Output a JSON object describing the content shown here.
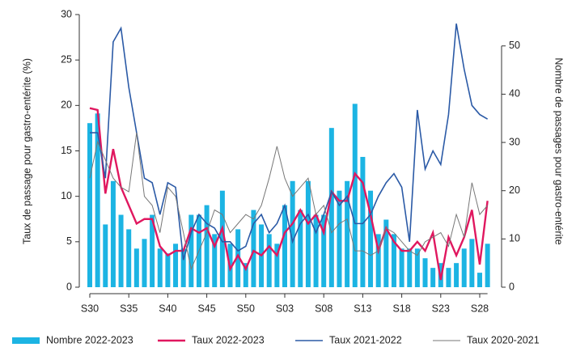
{
  "chart_data": {
    "type": "bar-line",
    "ylabel": "Taux de passage pour gastro-entérite (%)",
    "y2label": "Nombre de passages pour gastro-entérite",
    "categories": [
      "S30",
      null,
      null,
      null,
      null,
      "S35",
      null,
      null,
      null,
      null,
      "S40",
      null,
      null,
      null,
      null,
      "S45",
      null,
      null,
      null,
      null,
      "S50",
      null,
      null,
      null,
      null,
      "S03",
      null,
      null,
      null,
      null,
      "S08",
      null,
      null,
      null,
      null,
      "S13",
      null,
      null,
      null,
      null,
      "S18",
      null,
      null,
      null,
      null,
      "S23",
      null,
      null,
      null,
      null,
      "S28",
      null
    ],
    "ylim": [
      0,
      30
    ],
    "yticks": [
      0,
      5,
      10,
      15,
      20,
      25,
      30
    ],
    "y2lim": [
      0,
      56.5
    ],
    "y2ticks": [
      0,
      10,
      20,
      30,
      40,
      50
    ],
    "series": [
      {
        "name": "Nombre 2022-2023",
        "kind": "bar",
        "axis": "y2",
        "color": "#1cb4e3",
        "values": [
          34,
          36,
          13,
          22,
          15,
          12,
          8,
          10,
          15,
          8,
          7,
          9,
          8,
          15,
          15,
          17,
          11,
          20,
          9,
          12,
          5,
          16,
          13,
          11,
          9,
          17,
          22,
          16,
          22,
          15,
          15,
          33,
          20,
          22,
          38,
          27,
          20,
          11,
          14,
          11,
          8,
          8,
          8,
          6,
          4,
          5,
          4,
          5,
          8,
          10,
          3,
          9
        ]
      },
      {
        "name": "Taux 2022-2023",
        "kind": "line",
        "axis": "y",
        "color": "#e0175f",
        "values": [
          19.7,
          19.5,
          10.3,
          15.2,
          11,
          9,
          7,
          7.5,
          7.5,
          4.5,
          3.5,
          4,
          4,
          6.5,
          6,
          6.5,
          4.5,
          6.5,
          2,
          3.5,
          2,
          4,
          3.5,
          4.5,
          3.5,
          6,
          7,
          8.5,
          7,
          8,
          6,
          10.5,
          9.5,
          9.5,
          12.5,
          11.5,
          8,
          4,
          6.5,
          5,
          4,
          4,
          5,
          4,
          6,
          0.8,
          5.5,
          3.5,
          5.5,
          8.5,
          2.5,
          9.5
        ]
      },
      {
        "name": "Taux 2021-2022",
        "kind": "line",
        "axis": "y",
        "color": "#2b5aa6",
        "values": [
          17,
          17,
          12,
          27,
          28.5,
          22,
          17,
          12,
          11.5,
          8,
          11.5,
          11,
          3,
          6,
          8,
          7,
          6.5,
          5,
          5,
          4,
          4.5,
          7,
          8,
          6,
          7,
          9,
          5,
          7,
          8,
          6,
          8,
          10.5,
          9,
          10,
          7,
          7,
          8,
          10,
          11.5,
          12.5,
          11,
          5,
          19.5,
          13,
          15,
          13.5,
          19,
          29,
          24,
          20,
          19,
          18.5
        ]
      },
      {
        "name": "Taux 2020-2021",
        "kind": "line",
        "axis": "y",
        "color": "#777777",
        "values": [
          12,
          16,
          14,
          12,
          11,
          10.5,
          17,
          10,
          9,
          6,
          11,
          10,
          6,
          2,
          4,
          6,
          8.5,
          8,
          6,
          7,
          8,
          7.5,
          9,
          12,
          15.5,
          12,
          10,
          11,
          12,
          8,
          9,
          6,
          7,
          7.5,
          4,
          4,
          3.5,
          4,
          6.5,
          6,
          5,
          4,
          3.5,
          5,
          5.5,
          6,
          4.5,
          8,
          5.5,
          11.5,
          8,
          9
        ]
      }
    ]
  }
}
